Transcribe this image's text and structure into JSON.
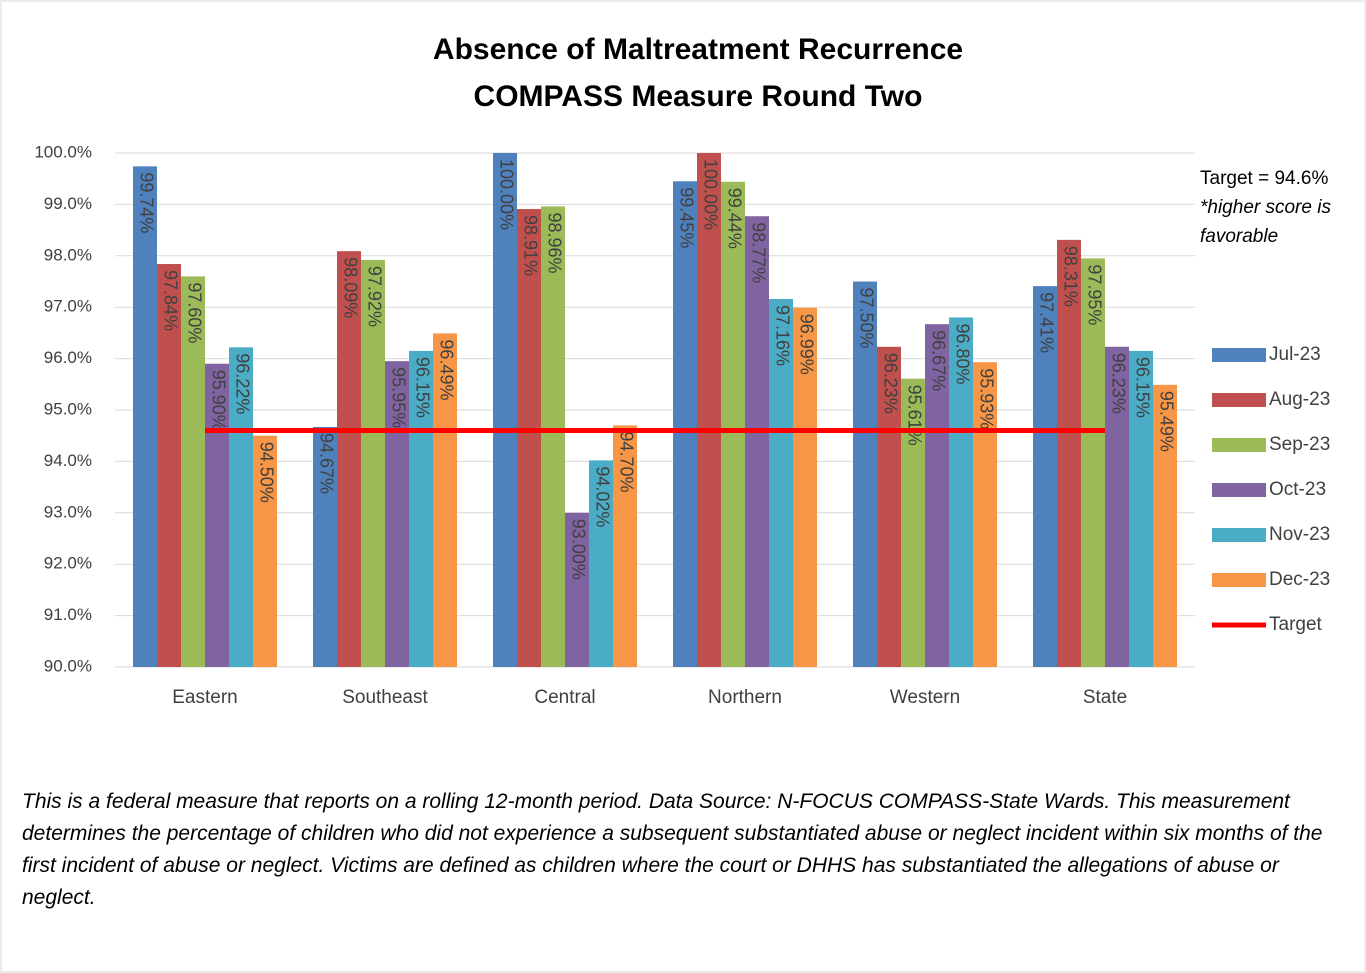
{
  "chart_data": {
    "type": "bar",
    "title": [
      "Absence of Maltreatment Recurrence",
      "COMPASS Measure Round Two"
    ],
    "categories": [
      "Eastern",
      "Southeast",
      "Central",
      "Northern",
      "Western",
      "State"
    ],
    "series": [
      {
        "name": "Jul-23",
        "color": "#4f81bd",
        "values": [
          99.74,
          94.67,
          100.0,
          99.45,
          97.5,
          97.41
        ],
        "value_labels": [
          "99.74%",
          "94.67%",
          "100.00%",
          "99.45%",
          "97.50%",
          "97.41%"
        ]
      },
      {
        "name": "Aug-23",
        "color": "#c0504d",
        "values": [
          97.84,
          98.09,
          98.91,
          100.0,
          96.23,
          98.31
        ],
        "value_labels": [
          "97.84%",
          "98.09%",
          "98.91%",
          "100.00%",
          "96.23%",
          "98.31%"
        ]
      },
      {
        "name": "Sep-23",
        "color": "#9bbb59",
        "values": [
          97.6,
          97.92,
          98.96,
          99.44,
          95.61,
          97.95
        ],
        "value_labels": [
          "97.60%",
          "97.92%",
          "98.96%",
          "99.44%",
          "95.61%",
          "97.95%"
        ]
      },
      {
        "name": "Oct-23",
        "color": "#8064a2",
        "values": [
          95.9,
          95.95,
          93.0,
          98.77,
          96.67,
          96.23
        ],
        "value_labels": [
          "95.90%",
          "95.95%",
          "93.00%",
          "98.77%",
          "96.67%",
          "96.23%"
        ]
      },
      {
        "name": "Nov-23",
        "color": "#4bacc6",
        "values": [
          96.22,
          96.15,
          94.02,
          97.16,
          96.8,
          96.15
        ],
        "value_labels": [
          "96.22%",
          "96.15%",
          "94.02%",
          "97.16%",
          "96.80%",
          "96.15%"
        ]
      },
      {
        "name": "Dec-23",
        "color": "#f79646",
        "values": [
          94.5,
          96.49,
          94.7,
          96.99,
          95.93,
          95.49
        ],
        "value_labels": [
          "94.50%",
          "96.49%",
          "94.70%",
          "96.99%",
          "95.93%",
          "95.49%"
        ]
      }
    ],
    "target": {
      "name": "Target",
      "color": "#ff0000",
      "value": 94.6
    },
    "ylim": [
      90,
      100
    ],
    "yticks": [
      {
        "value": 90,
        "label": "90.0%"
      },
      {
        "value": 91,
        "label": "91.0%"
      },
      {
        "value": 92,
        "label": "92.0%"
      },
      {
        "value": 93,
        "label": "93.0%"
      },
      {
        "value": 94,
        "label": "94.0%"
      },
      {
        "value": 95,
        "label": "95.0%"
      },
      {
        "value": 96,
        "label": "96.0%"
      },
      {
        "value": 97,
        "label": "97.0%"
      },
      {
        "value": 98,
        "label": "98.0%"
      },
      {
        "value": 99,
        "label": "99.0%"
      },
      {
        "value": 100,
        "label": "100.0%"
      }
    ],
    "grid": true,
    "legend": "right",
    "annotations": [
      "Target = 94.6%",
      "*higher score is favorable"
    ],
    "footnote": "This is a federal measure that reports on a rolling 12-month period. Data Source: N-FOCUS COMPASS-State Wards. This measurement determines the percentage of children who did not experience a subsequent substantiated abuse or neglect incident within six months of the first incident of abuse or neglect. Victims are defined as children where the court or DHHS has substantiated the allegations of abuse or neglect."
  }
}
